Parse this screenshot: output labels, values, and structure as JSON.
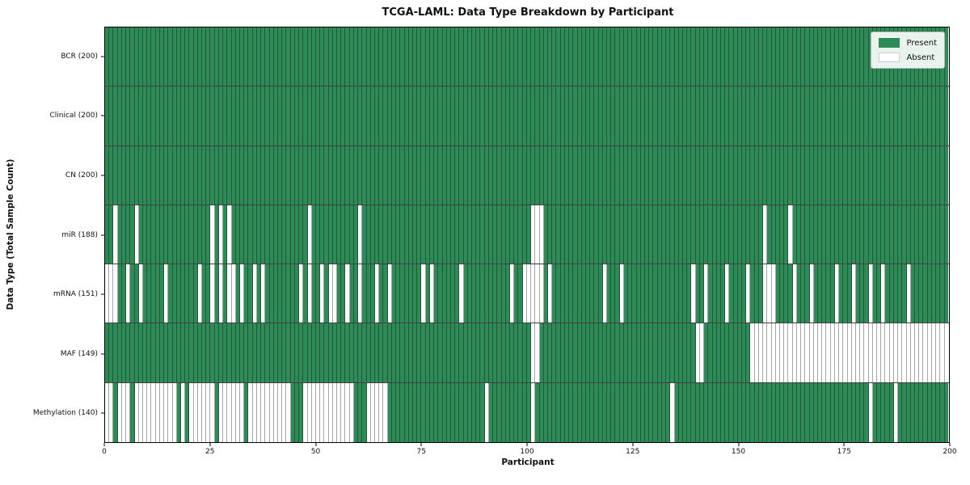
{
  "chart_data": {
    "type": "heatmap",
    "title": "TCGA-LAML: Data Type Breakdown by Participant",
    "xlabel": "Participant",
    "ylabel": "Data Type (Total Sample Count)",
    "x_axis": {
      "min": 0,
      "max": 200,
      "ticks": [
        0,
        25,
        50,
        75,
        100,
        125,
        150,
        175,
        200
      ]
    },
    "n_participants": 200,
    "grid": true,
    "legend": {
      "position": "upper-right",
      "entries": [
        {
          "state": "present",
          "label": "Present"
        },
        {
          "state": "absent",
          "label": "Absent"
        }
      ]
    },
    "colors": {
      "present": "#2e8b57",
      "absent": "#ffffff",
      "cell_edge": "rgba(0,0,0,0.35)",
      "row_divider": "rgba(0,0,0,0.75)"
    },
    "rows": [
      {
        "label": "BCR (200)",
        "data_type": "BCR",
        "present_count": 200,
        "absent_participants": []
      },
      {
        "label": "Clinical (200)",
        "data_type": "Clinical",
        "present_count": 200,
        "absent_participants": []
      },
      {
        "label": "CN (200)",
        "data_type": "CN",
        "present_count": 200,
        "absent_participants": []
      },
      {
        "label": "miR (188)",
        "data_type": "miR",
        "present_count": 188,
        "absent_participants": [
          2,
          7,
          25,
          27,
          29,
          48,
          60,
          101,
          102,
          103,
          156,
          162
        ]
      },
      {
        "label": "mRNA (151)",
        "data_type": "mRNA",
        "present_count": 151,
        "absent_participants": [
          0,
          1,
          2,
          5,
          8,
          14,
          22,
          25,
          27,
          29,
          30,
          32,
          35,
          37,
          46,
          48,
          51,
          53,
          54,
          57,
          60,
          64,
          67,
          75,
          77,
          84,
          96,
          99,
          100,
          101,
          102,
          103,
          105,
          118,
          122,
          139,
          142,
          147,
          152,
          156,
          157,
          158,
          163,
          167,
          173,
          177,
          181,
          184,
          190
        ]
      },
      {
        "label": "MAF (149)",
        "data_type": "MAF",
        "present_count": 149,
        "absent_participants": [
          101,
          102,
          140,
          141,
          153,
          154,
          155,
          156,
          157,
          158,
          159,
          160,
          161,
          162,
          163,
          164,
          165,
          166,
          167,
          168,
          169,
          170,
          171,
          172,
          173,
          174,
          175,
          176,
          177,
          178,
          179,
          180,
          181,
          182,
          183,
          184,
          185,
          186,
          187,
          188,
          189,
          190,
          191,
          192,
          193,
          194,
          195,
          196,
          197,
          198,
          199
        ]
      },
      {
        "label": "Methylation (140)",
        "data_type": "Methylation",
        "present_count": 140,
        "absent_participants": [
          0,
          1,
          3,
          4,
          5,
          7,
          8,
          9,
          10,
          11,
          12,
          13,
          14,
          15,
          16,
          18,
          20,
          21,
          22,
          23,
          24,
          25,
          27,
          28,
          29,
          30,
          31,
          32,
          34,
          35,
          36,
          37,
          38,
          39,
          40,
          41,
          42,
          43,
          47,
          48,
          49,
          50,
          51,
          52,
          53,
          54,
          55,
          56,
          57,
          58,
          62,
          63,
          64,
          65,
          66,
          90,
          101,
          134,
          181,
          187
        ]
      }
    ]
  }
}
